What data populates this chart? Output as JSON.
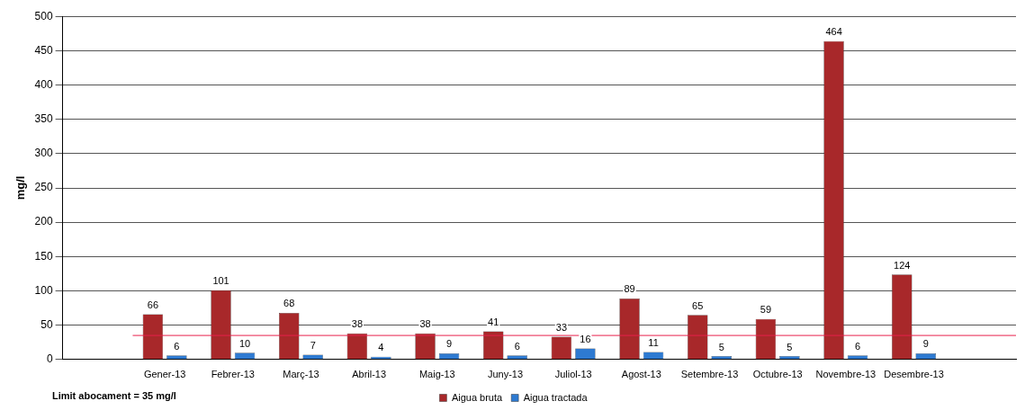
{
  "chart_data": {
    "type": "bar",
    "ylabel": "mg/l",
    "categories": [
      null,
      "Gener-13",
      "Febrer-13",
      "Març-13",
      "Abril-13",
      "Maig-13",
      "Juny-13",
      "Juliol-13",
      "Agost-13",
      "Setembre-13",
      "Octubre-13",
      "Novembre-13",
      "Desembre-13",
      null
    ],
    "series": [
      {
        "name": "Aigua bruta",
        "color": "#a8282a",
        "values": [
          null,
          66,
          101,
          68,
          38,
          38,
          41,
          33,
          89,
          65,
          59,
          464,
          124,
          null
        ]
      },
      {
        "name": "Aigua tractada",
        "color": "#2e7ad1",
        "values": [
          null,
          6,
          10,
          7,
          4,
          9,
          6,
          16,
          11,
          5,
          5,
          6,
          9,
          null
        ]
      }
    ],
    "ylim": [
      0,
      500
    ],
    "yticks": [
      0,
      50,
      100,
      150,
      200,
      250,
      300,
      350,
      400,
      450,
      500
    ],
    "grid": "y",
    "legend": "bottom",
    "data_labels": true,
    "ref_lines": [
      {
        "axis": "y",
        "value": 35,
        "color": "#e8204a"
      }
    ],
    "annotations": [
      "Limit abocament = 35 mg/l"
    ]
  }
}
